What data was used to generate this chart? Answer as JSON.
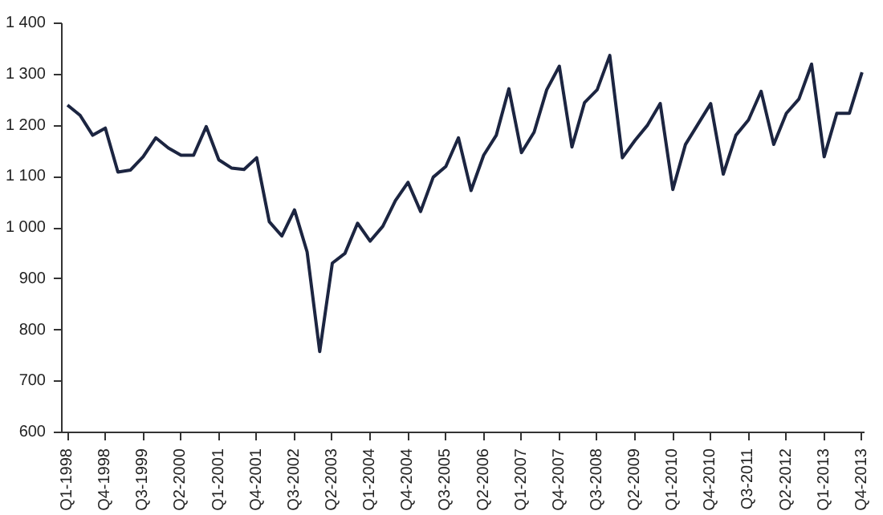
{
  "chart_data": {
    "type": "line",
    "categories": [
      "Q1-1998",
      null,
      null,
      "Q4-1998",
      null,
      null,
      "Q3-1999",
      null,
      null,
      "Q2-2000",
      null,
      null,
      "Q1-2001",
      null,
      null,
      "Q4-2001",
      null,
      null,
      "Q3-2002",
      null,
      null,
      "Q2-2003",
      null,
      null,
      "Q1-2004",
      null,
      null,
      "Q4-2004",
      null,
      null,
      "Q3-2005",
      null,
      null,
      "Q2-2006",
      null,
      null,
      "Q1-2007",
      null,
      null,
      "Q4-2007",
      null,
      null,
      "Q3-2008",
      null,
      null,
      "Q2-2009",
      null,
      null,
      "Q1-2010",
      null,
      null,
      "Q4-2010",
      null,
      null,
      "Q3-2011",
      null,
      null,
      "Q2-2012",
      null,
      null,
      "Q1-2013",
      null,
      null,
      "Q4-2013"
    ],
    "series": [
      {
        "color": "#1c2541",
        "values": [
          1240,
          1220,
          1181,
          1195,
          1109,
          1113,
          1139,
          1176,
          1156,
          1142,
          1142,
          1198,
          1133,
          1117,
          1114,
          1137,
          1012,
          984,
          1035,
          953,
          758,
          931,
          950,
          1009,
          974,
          1003,
          1053,
          1089,
          1032,
          1099,
          1120,
          1176,
          1073,
          1142,
          1181,
          1272,
          1147,
          1187,
          1270,
          1316,
          1158,
          1245,
          1270,
          1337,
          1137,
          1171,
          1201,
          1243,
          1075,
          1163,
          1203,
          1243,
          1105,
          1181,
          1211,
          1267,
          1163,
          1224,
          1252,
          1320,
          1139,
          1224,
          1224,
          1304
        ]
      }
    ],
    "ylim": [
      600,
      1400
    ],
    "yticks": [
      600,
      700,
      800,
      900,
      {
        "value": 1000,
        "label": "1 000"
      },
      {
        "value": 1100,
        "label": "1 100"
      },
      {
        "value": 1200,
        "label": "1 200"
      },
      {
        "value": 1300,
        "label": "1 300"
      },
      {
        "value": 1400,
        "label": "1 400"
      }
    ],
    "grid": false,
    "marker": "none",
    "line_style": "solid"
  }
}
